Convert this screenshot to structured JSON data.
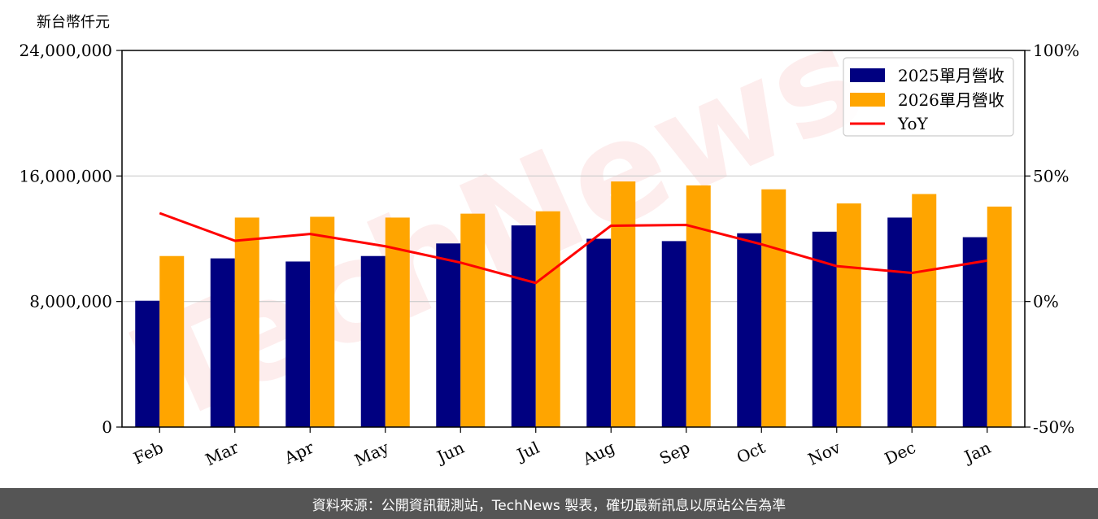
{
  "watermark": "TechNews",
  "footer": {
    "source_text": "資料來源：公開資訊觀測站，TechNews 製表，確切最新訊息以原站公告為準"
  },
  "chart_data": {
    "type": "bar",
    "title": "",
    "unit_label": "新台幣仟元",
    "categories": [
      "Feb",
      "Mar",
      "Apr",
      "May",
      "Jun",
      "Jul",
      "Aug",
      "Sep",
      "Oct",
      "Nov",
      "Dec",
      "Jan"
    ],
    "series": [
      {
        "name": "2025單月營收",
        "type": "bar",
        "axis": "left",
        "color": "#000080",
        "values": [
          8050000,
          10750000,
          10550000,
          10900000,
          11700000,
          12850000,
          12000000,
          11850000,
          12350000,
          12450000,
          13350000,
          12100000
        ]
      },
      {
        "name": "2026單月營收",
        "type": "bar",
        "axis": "left",
        "color": "#FFA500",
        "values": [
          10900000,
          13350000,
          13400000,
          13350000,
          13600000,
          13750000,
          15650000,
          15400000,
          15150000,
          14250000,
          14850000,
          14050000
        ]
      },
      {
        "name": "YoY",
        "type": "line",
        "axis": "right",
        "color": "#FF0000",
        "values": [
          35.2,
          24.2,
          26.9,
          22.0,
          15.5,
          7.4,
          30.2,
          30.5,
          22.8,
          14.1,
          11.4,
          16.3
        ]
      }
    ],
    "y_left": {
      "min": 0,
      "max": 24000000,
      "ticks": [
        "0",
        "8,000,000",
        "16,000,000",
        "24,000,000"
      ]
    },
    "y_right": {
      "min": -50,
      "max": 100,
      "ticks": [
        "-50%",
        "0%",
        "50%",
        "100%"
      ]
    },
    "grid": true,
    "legend": "top-right"
  }
}
